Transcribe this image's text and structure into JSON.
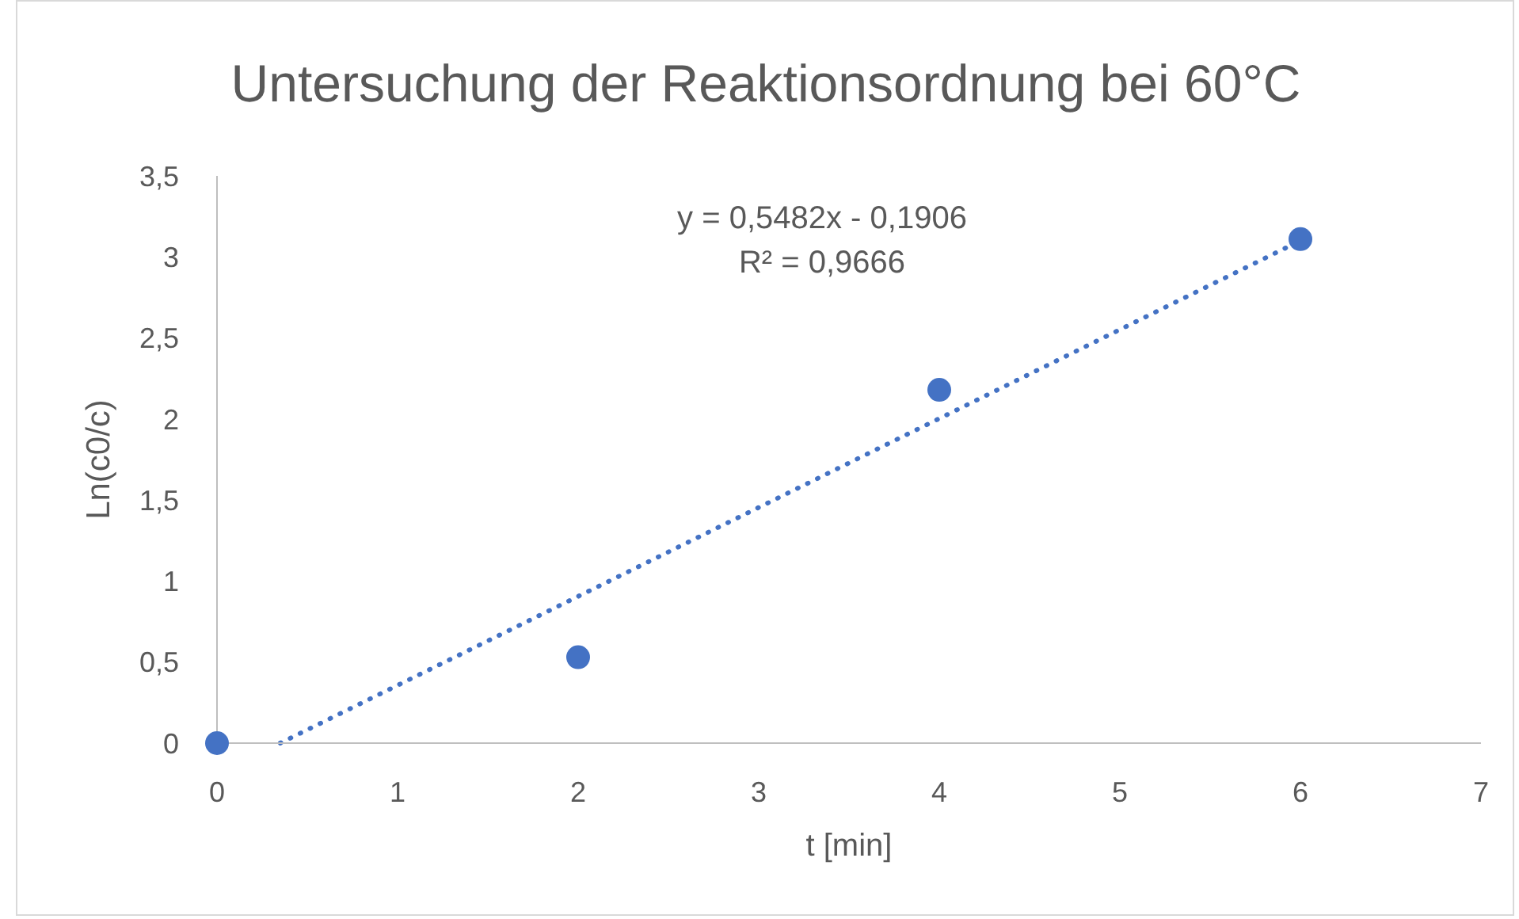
{
  "chart_data": {
    "type": "scatter",
    "title": "Untersuchung der Reaktionsordnung bei 60°C",
    "xlabel": "t [min]",
    "ylabel": "Ln(c0/c)",
    "annotations": [
      "y = 0,5482x - 0,1906",
      "R² = 0,9666"
    ],
    "series": [
      {
        "color": "#4472c4",
        "x": [
          0,
          2,
          4,
          6
        ],
        "values": [
          0,
          0.53,
          2.18,
          3.11
        ],
        "marker": "circle"
      },
      {
        "type": "line",
        "color": "#4472c4",
        "x": [
          0.35,
          6
        ],
        "values": [
          0,
          3.1
        ],
        "line_style": "dotted",
        "marker": "none"
      }
    ],
    "xlim": [
      0,
      7
    ],
    "xticks": [
      0,
      1,
      2,
      3,
      4,
      5,
      6,
      7
    ],
    "ylim": [
      0,
      3.5
    ],
    "yticks": [
      0,
      {
        "value": 0.5,
        "label": "0,5"
      },
      1,
      {
        "value": 1.5,
        "label": "1,5"
      },
      2,
      {
        "value": 2.5,
        "label": "2,5"
      },
      3,
      {
        "value": 3.5,
        "label": "3,5"
      }
    ],
    "grid": false
  }
}
